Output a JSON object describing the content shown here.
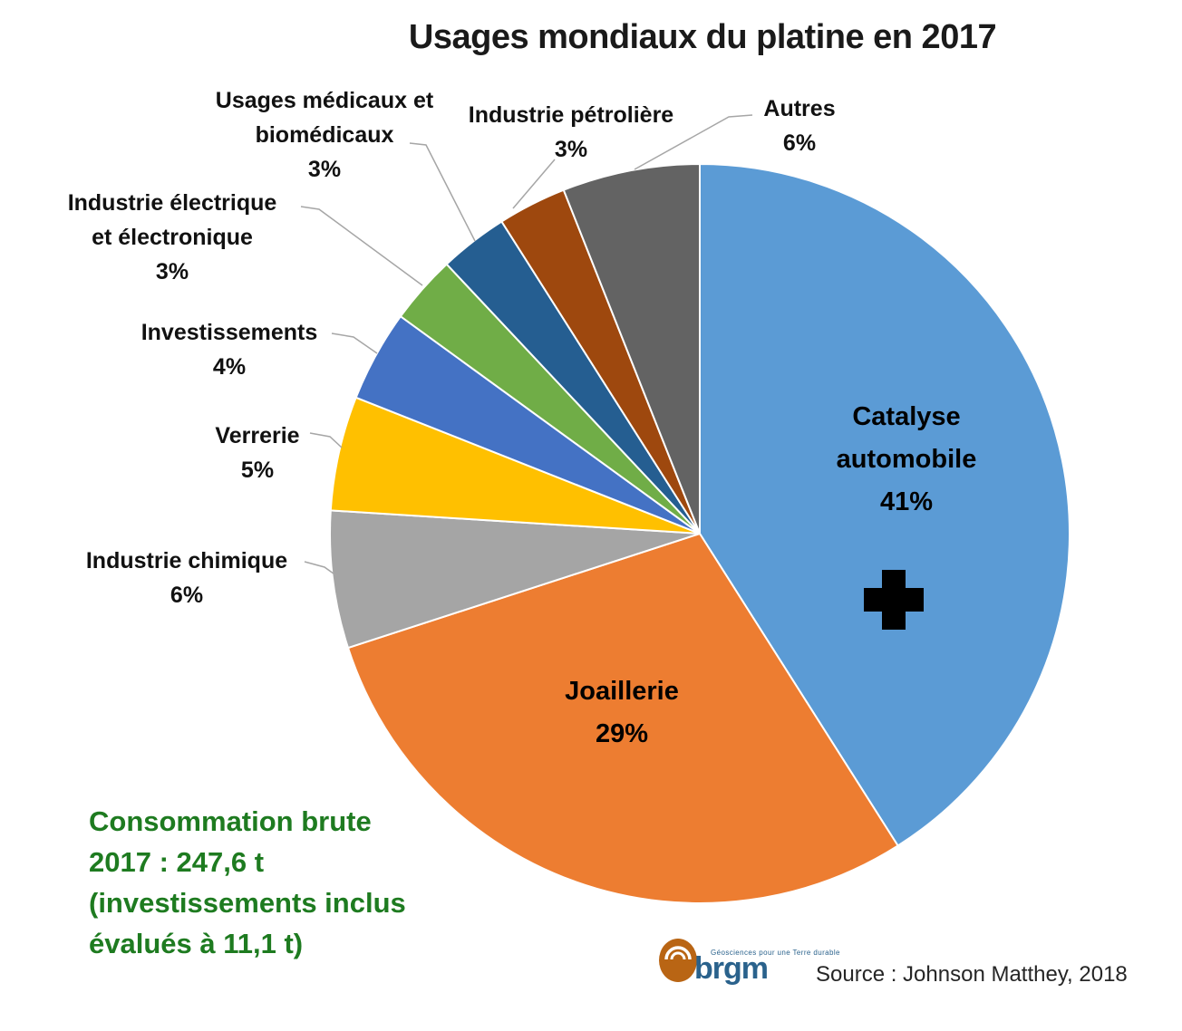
{
  "title": "Usages mondiaux du platine en 2017",
  "chart_data": {
    "type": "pie",
    "title": "Usages mondiaux du platine en 2017",
    "start_angle_deg": 0,
    "direction": "clockwise",
    "unit": "%",
    "slices": [
      {
        "id": "catalyse",
        "label": "Catalyse automobile",
        "value": 41,
        "color": "#5B9BD5"
      },
      {
        "id": "joaillerie",
        "label": "Joaillerie",
        "value": 29,
        "color": "#ED7D31"
      },
      {
        "id": "chimique",
        "label": "Industrie chimique",
        "value": 6,
        "color": "#A5A5A5"
      },
      {
        "id": "verrerie",
        "label": "Verrerie",
        "value": 5,
        "color": "#FFC000"
      },
      {
        "id": "investissements",
        "label": "Investissements",
        "value": 4,
        "color": "#4472C4"
      },
      {
        "id": "electrique",
        "label": "Industrie électrique et électronique",
        "value": 3,
        "color": "#70AD47"
      },
      {
        "id": "medicaux",
        "label": "Usages médicaux et biomédicaux",
        "value": 3,
        "color": "#255E91"
      },
      {
        "id": "petroliere",
        "label": "Industrie pétrolière",
        "value": 3,
        "color": "#9E480E"
      },
      {
        "id": "autres",
        "label": "Autres",
        "value": 6,
        "color": "#636363"
      }
    ]
  },
  "callouts": {
    "medicaux": {
      "lines": [
        "Usages médicaux et",
        "biomédicaux"
      ],
      "pct": "3%"
    },
    "petroliere": {
      "lines": [
        "Industrie pétrolière"
      ],
      "pct": "3%"
    },
    "autres": {
      "lines": [
        "Autres"
      ],
      "pct": "6%"
    },
    "electrique": {
      "lines": [
        "Industrie électrique",
        "et électronique"
      ],
      "pct": "3%"
    },
    "investissements": {
      "lines": [
        "Investissements"
      ],
      "pct": "4%"
    },
    "verrerie": {
      "lines": [
        "Verrerie"
      ],
      "pct": "5%"
    },
    "chimique": {
      "lines": [
        "Industrie chimique"
      ],
      "pct": "6%"
    },
    "catalyse": {
      "lines": [
        "Catalyse",
        "automobile"
      ],
      "pct": "41%"
    },
    "joaillerie": {
      "lines": [
        "Joaillerie"
      ],
      "pct": "29%"
    }
  },
  "annotation": {
    "lines": [
      "Consommation brute",
      "2017 : 247,6 t",
      "(investissements inclus",
      "évalués à 11,1 t)"
    ],
    "color": "#1E7B20"
  },
  "source": "Source : Johnson Matthey, 2018",
  "logo": {
    "word": "brgm",
    "tagline": "Géosciences pour une Terre durable",
    "orange": "#B96514",
    "blue": "#2A628C"
  }
}
